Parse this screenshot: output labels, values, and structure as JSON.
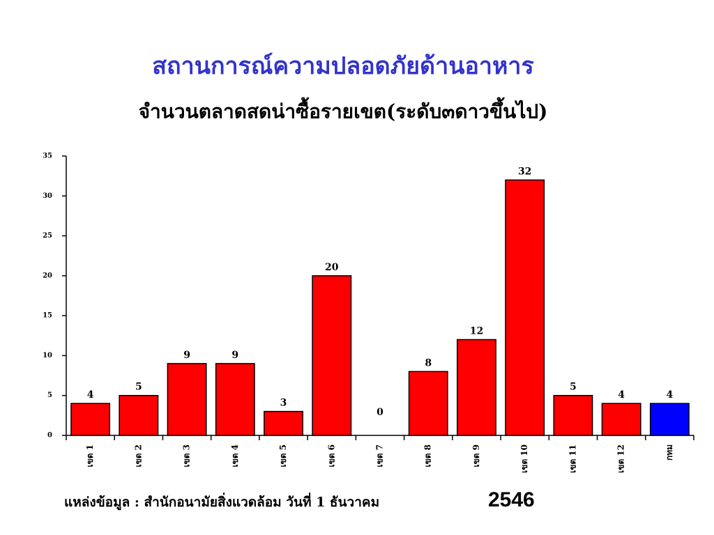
{
  "chart_data": {
    "type": "bar",
    "title": "สถานการณ์ความปลอดภัยด้านอาหาร",
    "subtitle": "จำนวนตลาดสดน่าซื้อรายเขต(ระดับ๓ดาวขึ้นไป)",
    "source": "แหล่งข้อมูล : สำนักอนามัยสิ่งแวดล้อม วันที่ 1 ธันวาคม",
    "source_year": "2546",
    "categories": [
      "เขต 1",
      "เขต 2",
      "เขต 3",
      "เขต 4",
      "เขต 5",
      "เขต 6",
      "เขต 7",
      "เขต 8",
      "เขต 9",
      "เขต 10",
      "เขต 11",
      "เขต 12",
      "กทม"
    ],
    "values": [
      4,
      5,
      9,
      9,
      3,
      20,
      0,
      8,
      12,
      32,
      5,
      4,
      4
    ],
    "colors": [
      "#ff0000",
      "#ff0000",
      "#ff0000",
      "#ff0000",
      "#ff0000",
      "#ff0000",
      "#ff0000",
      "#ff0000",
      "#ff0000",
      "#ff0000",
      "#ff0000",
      "#ff0000",
      "#0000ff"
    ],
    "ylim": [
      0,
      35
    ],
    "yticks": [
      0,
      5,
      10,
      15,
      20,
      25,
      30,
      35
    ],
    "grid": false
  }
}
